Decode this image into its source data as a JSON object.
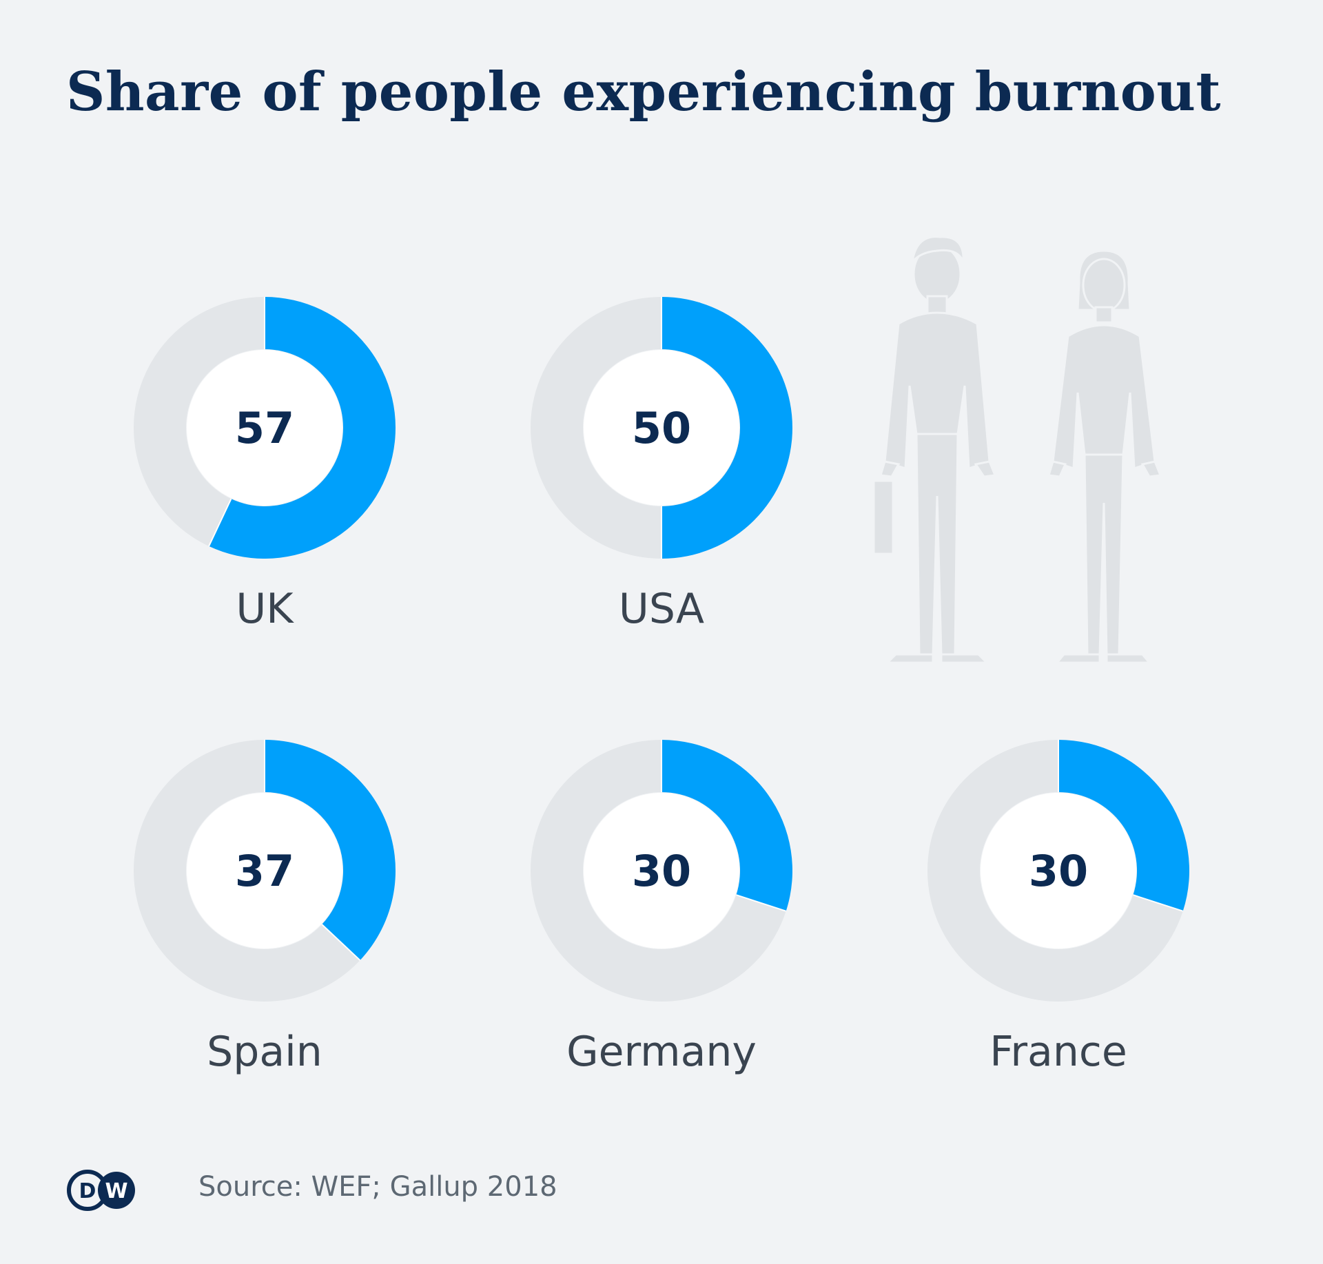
{
  "title": "Share of  people experiencing burnout",
  "source": "Source: WEF; Gallup 2018",
  "logo": {
    "text": "DW",
    "letter_d": "D",
    "letter_w": "W"
  },
  "colors": {
    "background": "#f1f3f5",
    "accent": "#00a0fb",
    "track": "#e3e6e9",
    "text_dark": "#0c2a52",
    "text_label": "#3a4450",
    "figure": "#dfe2e5"
  },
  "chart_data": {
    "type": "pie",
    "unit": "",
    "max": 100,
    "categories": [
      "UK",
      "USA",
      "Spain",
      "Germany",
      "France"
    ],
    "values": [
      57,
      50,
      37,
      30,
      30
    ],
    "labels": [
      "57",
      "50",
      "37",
      "30",
      "30"
    ]
  }
}
